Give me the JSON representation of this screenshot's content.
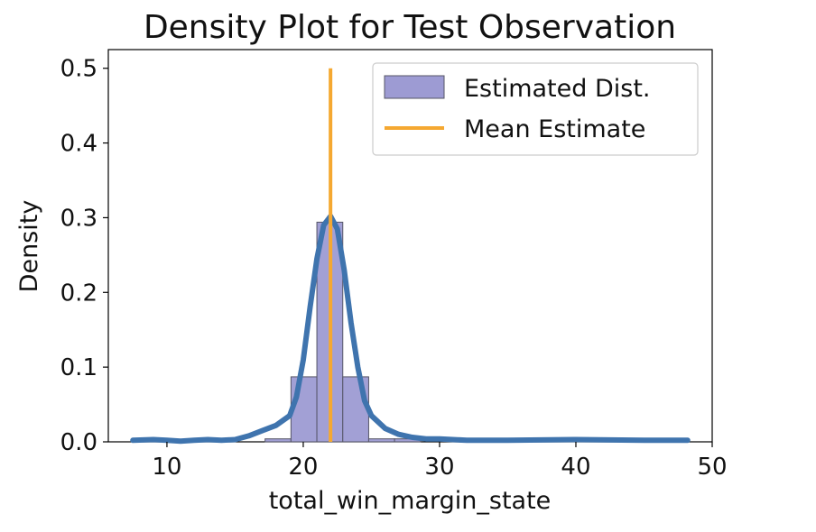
{
  "chart_data": {
    "type": "bar",
    "title": "Density Plot for Test Observation",
    "xlabel": "total_win_margin_state",
    "ylabel": "Density",
    "xlim": [
      5.7,
      50
    ],
    "ylim": [
      0,
      0.525
    ],
    "xticks": [
      "10",
      "20",
      "30",
      "40",
      "50"
    ],
    "xtick_values": [
      10,
      20,
      30,
      40,
      50
    ],
    "yticks": [
      "0.0",
      "0.1",
      "0.2",
      "0.3",
      "0.4",
      "0.5"
    ],
    "ytick_values": [
      0,
      0.1,
      0.2,
      0.3,
      0.4,
      0.5
    ],
    "legend": {
      "position": "top-right",
      "entries": [
        {
          "label": "Estimated Dist.",
          "type": "patch"
        },
        {
          "label": "Mean Estimate",
          "type": "line"
        }
      ]
    },
    "histogram": {
      "name": "Estimated Dist.",
      "bin_width": 1.9,
      "bins": [
        {
          "x0": 15.3,
          "value": 0.0
        },
        {
          "x0": 17.2,
          "value": 0.004
        },
        {
          "x0": 19.1,
          "value": 0.087
        },
        {
          "x0": 21.0,
          "value": 0.294
        },
        {
          "x0": 22.9,
          "value": 0.087
        },
        {
          "x0": 24.8,
          "value": 0.004
        },
        {
          "x0": 26.7,
          "value": 0.004
        }
      ]
    },
    "kde": {
      "x": [
        7.5,
        9,
        10,
        11,
        12,
        13,
        14,
        15,
        16,
        17,
        18,
        19,
        19.5,
        20,
        20.5,
        21,
        21.5,
        22,
        22.5,
        23,
        23.5,
        24,
        24.5,
        25,
        26,
        27,
        28,
        29,
        30,
        32,
        35,
        40,
        45,
        48.2
      ],
      "y": [
        0.002,
        0.003,
        0.002,
        0.001,
        0.002,
        0.003,
        0.002,
        0.003,
        0.008,
        0.015,
        0.022,
        0.035,
        0.06,
        0.11,
        0.18,
        0.245,
        0.29,
        0.302,
        0.285,
        0.23,
        0.16,
        0.1,
        0.055,
        0.035,
        0.018,
        0.01,
        0.006,
        0.004,
        0.004,
        0.002,
        0.002,
        0.003,
        0.002,
        0.002
      ]
    },
    "mean_estimate": {
      "name": "Mean Estimate",
      "x": 22.0,
      "y_range": [
        0,
        0.5
      ]
    },
    "colors": {
      "histogram_fill": "#9d9bd3",
      "histogram_edge": "#555566",
      "kde_line": "#3f74ae",
      "mean_line": "#f5a831"
    }
  }
}
